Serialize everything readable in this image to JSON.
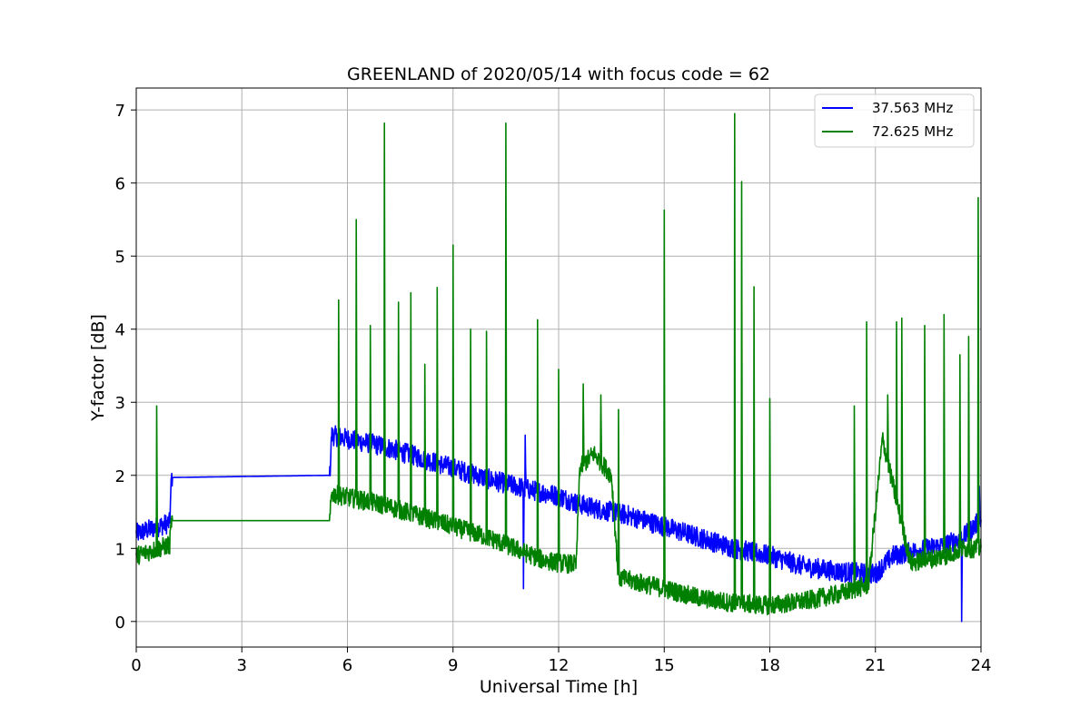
{
  "chart_data": {
    "type": "line",
    "title": "GREENLAND of 2020/05/14 with focus code = 62",
    "xlabel": "Universal Time [h]",
    "ylabel": "Y-factor [dB]",
    "xlim": [
      0,
      24
    ],
    "ylim": [
      -0.35,
      7.3
    ],
    "xticks": [
      0,
      3,
      6,
      9,
      12,
      15,
      18,
      21,
      24
    ],
    "yticks": [
      0,
      1,
      2,
      3,
      4,
      5,
      6,
      7
    ],
    "grid": true,
    "legend_position": "top-right",
    "series": [
      {
        "name": "37.563 MHz",
        "color": "#0000ff",
        "baseline": {
          "x": [
            0,
            0.95,
            1.0,
            5.5,
            5.55,
            6.0,
            7.0,
            8.0,
            9.0,
            10.0,
            10.8,
            11.2,
            12.0,
            12.5,
            13.0,
            13.5,
            14.0,
            15.0,
            16.0,
            17.0,
            18.0,
            19.0,
            20.0,
            21.0,
            21.5,
            22.0,
            23.0,
            23.5,
            23.8,
            24.0
          ],
          "y": [
            1.2,
            1.35,
            1.97,
            2.0,
            2.55,
            2.5,
            2.4,
            2.25,
            2.1,
            1.95,
            1.85,
            1.8,
            1.72,
            1.62,
            1.55,
            1.5,
            1.45,
            1.3,
            1.15,
            1.0,
            0.9,
            0.75,
            0.68,
            0.65,
            0.9,
            0.95,
            1.05,
            1.15,
            1.3,
            1.4
          ]
        },
        "spikes": [
          {
            "x": 11.0,
            "y": 0.45
          },
          {
            "x": 11.05,
            "y": 2.55
          },
          {
            "x": 23.45,
            "y": 0.0
          },
          {
            "x": 23.95,
            "y": 1.85
          }
        ]
      },
      {
        "name": "72.625 MHz",
        "color": "#008000",
        "baseline": {
          "x": [
            0,
            0.95,
            1.0,
            5.5,
            5.55,
            6.0,
            7.0,
            8.0,
            9.0,
            10.0,
            11.0,
            11.5,
            12.0,
            12.5,
            12.6,
            13.0,
            13.5,
            13.7,
            15.0,
            16.0,
            17.0,
            18.0,
            19.0,
            20.0,
            20.8,
            21.2,
            22.0,
            23.0,
            23.5,
            24.0
          ],
          "y": [
            0.9,
            1.05,
            1.38,
            1.38,
            1.75,
            1.7,
            1.6,
            1.45,
            1.3,
            1.15,
            0.95,
            0.85,
            0.8,
            0.78,
            2.1,
            2.3,
            2.0,
            0.6,
            0.45,
            0.32,
            0.25,
            0.22,
            0.28,
            0.38,
            0.5,
            2.5,
            0.8,
            0.9,
            1.0,
            1.0
          ]
        },
        "spikes": [
          {
            "x": 0.58,
            "y": 2.95
          },
          {
            "x": 5.75,
            "y": 4.4
          },
          {
            "x": 6.25,
            "y": 5.5
          },
          {
            "x": 6.65,
            "y": 4.05
          },
          {
            "x": 7.05,
            "y": 6.82
          },
          {
            "x": 7.45,
            "y": 4.37
          },
          {
            "x": 7.8,
            "y": 4.5
          },
          {
            "x": 8.2,
            "y": 3.52
          },
          {
            "x": 8.55,
            "y": 4.57
          },
          {
            "x": 9.0,
            "y": 5.15
          },
          {
            "x": 9.5,
            "y": 4.0
          },
          {
            "x": 9.95,
            "y": 3.97
          },
          {
            "x": 10.5,
            "y": 6.82
          },
          {
            "x": 11.4,
            "y": 4.13
          },
          {
            "x": 12.0,
            "y": 3.45
          },
          {
            "x": 12.7,
            "y": 3.25
          },
          {
            "x": 13.2,
            "y": 3.1
          },
          {
            "x": 13.7,
            "y": 2.9
          },
          {
            "x": 15.0,
            "y": 5.63
          },
          {
            "x": 17.0,
            "y": 6.95
          },
          {
            "x": 17.2,
            "y": 6.02
          },
          {
            "x": 17.55,
            "y": 4.58
          },
          {
            "x": 18.0,
            "y": 3.05
          },
          {
            "x": 20.4,
            "y": 2.95
          },
          {
            "x": 20.75,
            "y": 4.1
          },
          {
            "x": 21.35,
            "y": 3.1
          },
          {
            "x": 21.6,
            "y": 4.1
          },
          {
            "x": 21.75,
            "y": 4.15
          },
          {
            "x": 22.4,
            "y": 4.05
          },
          {
            "x": 22.95,
            "y": 4.2
          },
          {
            "x": 23.4,
            "y": 3.65
          },
          {
            "x": 23.65,
            "y": 3.9
          },
          {
            "x": 23.92,
            "y": 5.8
          }
        ]
      }
    ]
  }
}
